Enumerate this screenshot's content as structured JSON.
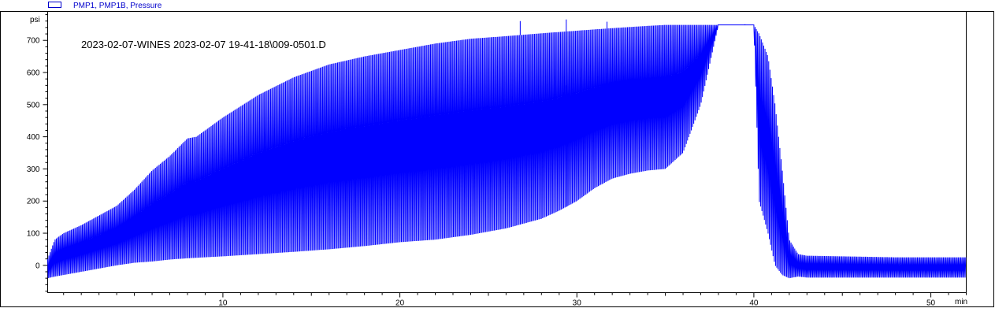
{
  "chart_data": {
    "type": "line",
    "legend": {
      "label": "PMP1, PMP1B, Pressure",
      "placement": "top-left"
    },
    "annotation": "2023-02-07-WINES  2023-02-07  19-41-18\\009-0501.D",
    "ylabel": "psi",
    "xlabel": "min",
    "xlim": [
      0.1,
      52.0
    ],
    "ylim": [
      -85,
      790
    ],
    "yticks": [
      0,
      100,
      200,
      300,
      400,
      500,
      600,
      700
    ],
    "xticks": [
      10,
      20,
      30,
      40,
      50
    ],
    "y_tick_labels": [
      "0",
      "100",
      "200",
      "300",
      "400",
      "500",
      "600",
      "700"
    ],
    "x_tick_labels": [
      "10",
      "20",
      "30",
      "40",
      "50"
    ],
    "color": "#0000ff",
    "grid": false,
    "series": [
      {
        "envelope_upper": {
          "x": [
            0.1,
            0.5,
            1.0,
            2.0,
            3.0,
            4.0,
            5.0,
            6.0,
            7.0,
            8.0,
            8.5,
            9.0,
            10.0,
            12.0,
            14.0,
            16.0,
            18.0,
            20.0,
            22.0,
            24.0,
            26.0,
            28.0,
            30.0,
            32.0,
            34.0,
            35.0,
            36.0,
            37.0,
            38.0,
            39.0,
            40.0,
            40.3,
            40.8,
            41.2,
            41.6,
            42.0,
            42.5,
            43.0,
            45.0,
            48.0,
            50.0,
            52.0
          ],
          "y": [
            20,
            80,
            100,
            125,
            155,
            185,
            235,
            295,
            340,
            395,
            400,
            420,
            460,
            530,
            585,
            625,
            650,
            670,
            690,
            705,
            713,
            722,
            730,
            738,
            745,
            748,
            748,
            748,
            748,
            748,
            748,
            720,
            650,
            500,
            300,
            80,
            35,
            30,
            28,
            25,
            25,
            25
          ]
        },
        "envelope_lower": {
          "x": [
            0.1,
            0.5,
            1.0,
            2.0,
            3.0,
            4.0,
            5.0,
            6.0,
            7.0,
            8.0,
            10.0,
            12.0,
            14.0,
            16.0,
            18.0,
            20.0,
            22.0,
            24.0,
            26.0,
            28.0,
            29.0,
            30.0,
            31.0,
            32.0,
            33.0,
            34.0,
            35.0,
            36.0,
            37.0,
            38.0,
            39.0,
            40.0,
            40.3,
            40.8,
            41.2,
            41.6,
            42.0,
            42.5,
            43.0,
            45.0,
            48.0,
            50.0,
            52.0
          ],
          "y": [
            -40,
            -35,
            -30,
            -20,
            -10,
            0,
            8,
            12,
            18,
            22,
            28,
            35,
            42,
            50,
            60,
            72,
            80,
            95,
            115,
            145,
            170,
            200,
            240,
            270,
            285,
            295,
            300,
            350,
            500,
            748,
            748,
            748,
            200,
            100,
            0,
            -30,
            -40,
            -35,
            -38,
            -38,
            -38,
            -38,
            -38
          ]
        },
        "spikes": [
          {
            "x": 26.8,
            "y": 760
          },
          {
            "x": 29.4,
            "y": 765
          },
          {
            "x": 29.4,
            "y": 560,
            "low": true
          },
          {
            "x": 31.7,
            "y": 758
          },
          {
            "x": 39.5,
            "y": 750
          }
        ]
      }
    ]
  }
}
